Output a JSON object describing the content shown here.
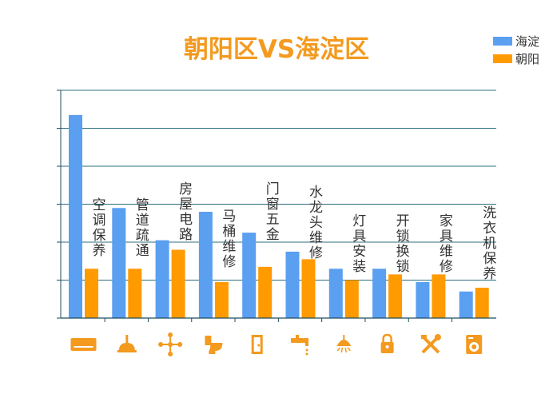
{
  "title": "朝阳区VS海淀区",
  "colors": {
    "title": "#f39a1f",
    "haidian": "#5a9ff0",
    "chaoyang": "#ff9a00",
    "icon": "#f39a1f",
    "axis": "#1f4e5f",
    "grid": "#2e6f7e"
  },
  "chart_data": {
    "type": "bar",
    "title": "朝阳区VS海淀区",
    "xlabel": "",
    "ylabel": "",
    "ylim": [
      0,
      6
    ],
    "grid": true,
    "legend_position": "top-right",
    "categories": [
      "空调保养",
      "管道疏通",
      "房屋电路",
      "马桶维修",
      "门窗五金",
      "水龙头维修",
      "灯具安装",
      "开锁换锁",
      "家具维修",
      "洗衣机保养"
    ],
    "series": [
      {
        "name": "海淀",
        "values": [
          5.35,
          2.9,
          2.05,
          2.8,
          2.25,
          1.75,
          1.3,
          1.3,
          0.95,
          0.7
        ]
      },
      {
        "name": "朝阳",
        "values": [
          1.3,
          1.3,
          1.8,
          0.95,
          1.35,
          1.55,
          1.0,
          1.15,
          1.15,
          0.8
        ]
      }
    ],
    "category_icons": [
      "air-conditioner-icon",
      "plunger-icon",
      "circuit-icon",
      "toilet-icon",
      "door-icon",
      "faucet-icon",
      "lamp-icon",
      "padlock-icon",
      "tools-icon",
      "washing-machine-icon"
    ]
  }
}
